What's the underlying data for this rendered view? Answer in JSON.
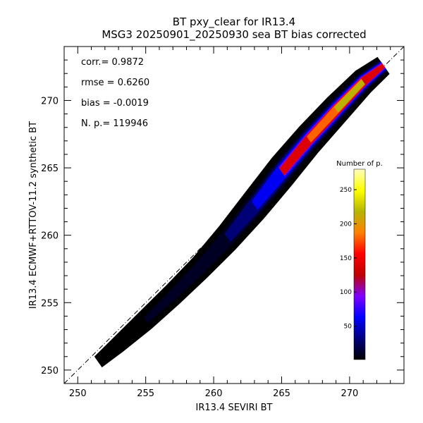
{
  "chart_data": {
    "type": "heatmap",
    "title": "BT pxy_clear for IR13.4",
    "subtitle": "MSG3 20250901_20250930 sea BT bias corrected",
    "xlabel": "IR13.4 SEVIRI BT",
    "ylabel": "IR13.4 ECMWF+RTTOV-11.2 synthetic BT",
    "xlim": [
      249,
      274
    ],
    "ylim": [
      249,
      274
    ],
    "x_ticks": [
      250,
      255,
      260,
      265,
      270
    ],
    "y_ticks": [
      250,
      255,
      260,
      265,
      270
    ],
    "stats": [
      {
        "label": "corr.=",
        "value": "0.9872"
      },
      {
        "label": "rmse =",
        "value": "0.6260"
      },
      {
        "label": "bias =",
        "value": "-0.0019"
      },
      {
        "label": "N. p.=",
        "value": "119946"
      }
    ],
    "diagonal": "1:1 line (dash-dot)",
    "density_ridge": {
      "x": [
        251.5,
        253,
        255,
        257,
        259,
        261,
        263,
        265,
        267,
        269,
        271,
        272.5
      ],
      "y": [
        250.6,
        251.9,
        253.7,
        255.6,
        257.6,
        259.8,
        262.2,
        264.7,
        267.1,
        269.3,
        271.4,
        272.6
      ],
      "half_width": [
        0.35,
        0.45,
        0.55,
        0.6,
        0.65,
        0.75,
        0.85,
        0.9,
        0.85,
        0.8,
        0.7,
        0.55
      ],
      "count": [
        3,
        6,
        12,
        18,
        28,
        45,
        90,
        160,
        210,
        250,
        240,
        150
      ]
    },
    "colorbar": {
      "title": "Number of p.",
      "min": 1,
      "max": 280,
      "ticks": [
        50,
        100,
        150,
        200,
        250
      ],
      "colors": [
        "#000000",
        "#00007f",
        "#0000ff",
        "#7f00ff",
        "#bf0000",
        "#ff0000",
        "#ff8000",
        "#b5b500",
        "#ffff00",
        "#ffffc0"
      ]
    }
  }
}
